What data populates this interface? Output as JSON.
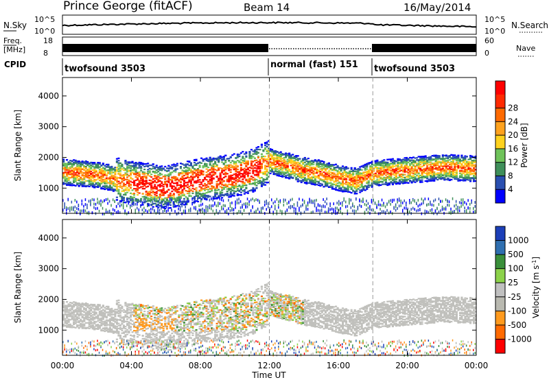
{
  "header": {
    "station": "Prince George (fitACF)",
    "beam": "Beam 14",
    "date": "16/May/2014"
  },
  "noise_panel": {
    "left_label": "N.Sky",
    "right_label": "N.Search",
    "left_ticks": [
      "10^5",
      "10^0"
    ],
    "right_ticks": [
      "10^5",
      "10^0"
    ]
  },
  "freq_panel": {
    "left_label_top": "Freq.",
    "left_label_bottom": "[MHz]",
    "right_label": "Nave",
    "left_ticks": [
      "18",
      "8"
    ],
    "right_ticks": [
      "60",
      "0"
    ]
  },
  "cpid_panel": {
    "label": "CPID",
    "segments": [
      {
        "label": "twofsound 3503",
        "start_h": 0,
        "end_h": 12
      },
      {
        "label": "normal (fast) 151",
        "start_h": 12,
        "end_h": 18
      },
      {
        "label": "twofsound 3503",
        "start_h": 18,
        "end_h": 24
      }
    ]
  },
  "colors": {
    "power_scale": [
      "#0000ff",
      "#2a4fb0",
      "#3f8f5a",
      "#6fc35a",
      "#ffd21e",
      "#ffa21e",
      "#ff6a00",
      "#ff2a00",
      "#ff0000"
    ],
    "velocity_scale": [
      "#1c3fb8",
      "#2f6fb0",
      "#3a8f3a",
      "#8cd24a",
      "#c0c0c0",
      "#b9b9b0",
      "#ff9a1e",
      "#ff6a00",
      "#ff0000"
    ],
    "ground_scatter": "#c0c0bc"
  },
  "chart_data": [
    {
      "type": "heatmap",
      "name": "power-panel",
      "ylabel": "Slant Range [km]",
      "xlabel": "Time UT",
      "x_ticks": [
        "00:00",
        "04:00",
        "08:00",
        "12:00",
        "16:00",
        "20:00",
        "00:00"
      ],
      "y_ticks": [
        "1000",
        "2000",
        "3000",
        "4000"
      ],
      "ylim": [
        180,
        4600
      ],
      "xlim_hours": [
        0,
        24
      ],
      "colorbar": {
        "label": "Power [dB]",
        "ticks": [
          "4",
          "8",
          "12",
          "16",
          "20",
          "24",
          "28"
        ]
      },
      "band_center_km": [
        [
          0,
          1550
        ],
        [
          2,
          1450
        ],
        [
          4,
          1200
        ],
        [
          6,
          1050
        ],
        [
          8,
          1300
        ],
        [
          10,
          1450
        ],
        [
          11,
          1600
        ],
        [
          12,
          1900
        ],
        [
          13,
          1750
        ],
        [
          14,
          1600
        ],
        [
          15,
          1500
        ],
        [
          16,
          1350
        ],
        [
          17,
          1250
        ],
        [
          18,
          1500
        ],
        [
          20,
          1600
        ],
        [
          22,
          1700
        ],
        [
          24,
          1650
        ]
      ]
    },
    {
      "type": "heatmap",
      "name": "velocity-panel",
      "ylabel": "Slant Range [km]",
      "xlabel": "Time UT",
      "x_ticks": [
        "00:00",
        "04:00",
        "08:00",
        "12:00",
        "16:00",
        "20:00",
        "00:00"
      ],
      "y_ticks": [
        "1000",
        "2000",
        "3000",
        "4000"
      ],
      "ylim": [
        180,
        4600
      ],
      "xlim_hours": [
        0,
        24
      ],
      "colorbar": {
        "label": "Velocity [m s^-1]",
        "ticks": [
          "1000",
          "500",
          "100",
          "25",
          "-25",
          "-100",
          "-500",
          "-1000"
        ]
      }
    }
  ]
}
